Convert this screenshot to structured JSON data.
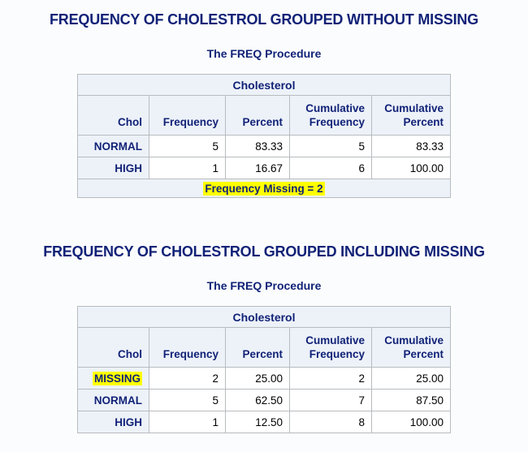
{
  "colors": {
    "title_text": "#112277",
    "header_bg": "#edf2f9",
    "border": "#b7bcc0",
    "highlight": "#ffff00",
    "data_text": "#000000",
    "page_bg": "#fbfcfe"
  },
  "sections": [
    {
      "title": "FREQUENCY OF CHOLESTROL GROUPED WITHOUT MISSING",
      "subtitle": "The FREQ Procedure",
      "table": {
        "caption": "Cholesterol",
        "columns": [
          "Chol",
          "Frequency",
          "Percent",
          "Cumulative Frequency",
          "Cumulative Percent"
        ],
        "rows": [
          {
            "label": "NORMAL",
            "highlighted": false,
            "cells": [
              "5",
              "83.33",
              "5",
              "83.33"
            ]
          },
          {
            "label": "HIGH",
            "highlighted": false,
            "cells": [
              "1",
              "16.67",
              "6",
              "100.00"
            ]
          }
        ],
        "footer": "Frequency Missing = 2"
      }
    },
    {
      "title": "FREQUENCY OF CHOLESTROL GROUPED INCLUDING MISSING",
      "subtitle": "The FREQ Procedure",
      "table": {
        "caption": "Cholesterol",
        "columns": [
          "Chol",
          "Frequency",
          "Percent",
          "Cumulative Frequency",
          "Cumulative Percent"
        ],
        "rows": [
          {
            "label": "MISSING",
            "highlighted": true,
            "cells": [
              "2",
              "25.00",
              "2",
              "25.00"
            ]
          },
          {
            "label": "NORMAL",
            "highlighted": false,
            "cells": [
              "5",
              "62.50",
              "7",
              "87.50"
            ]
          },
          {
            "label": "HIGH",
            "highlighted": false,
            "cells": [
              "1",
              "12.50",
              "8",
              "100.00"
            ]
          }
        ],
        "footer": null
      }
    }
  ]
}
